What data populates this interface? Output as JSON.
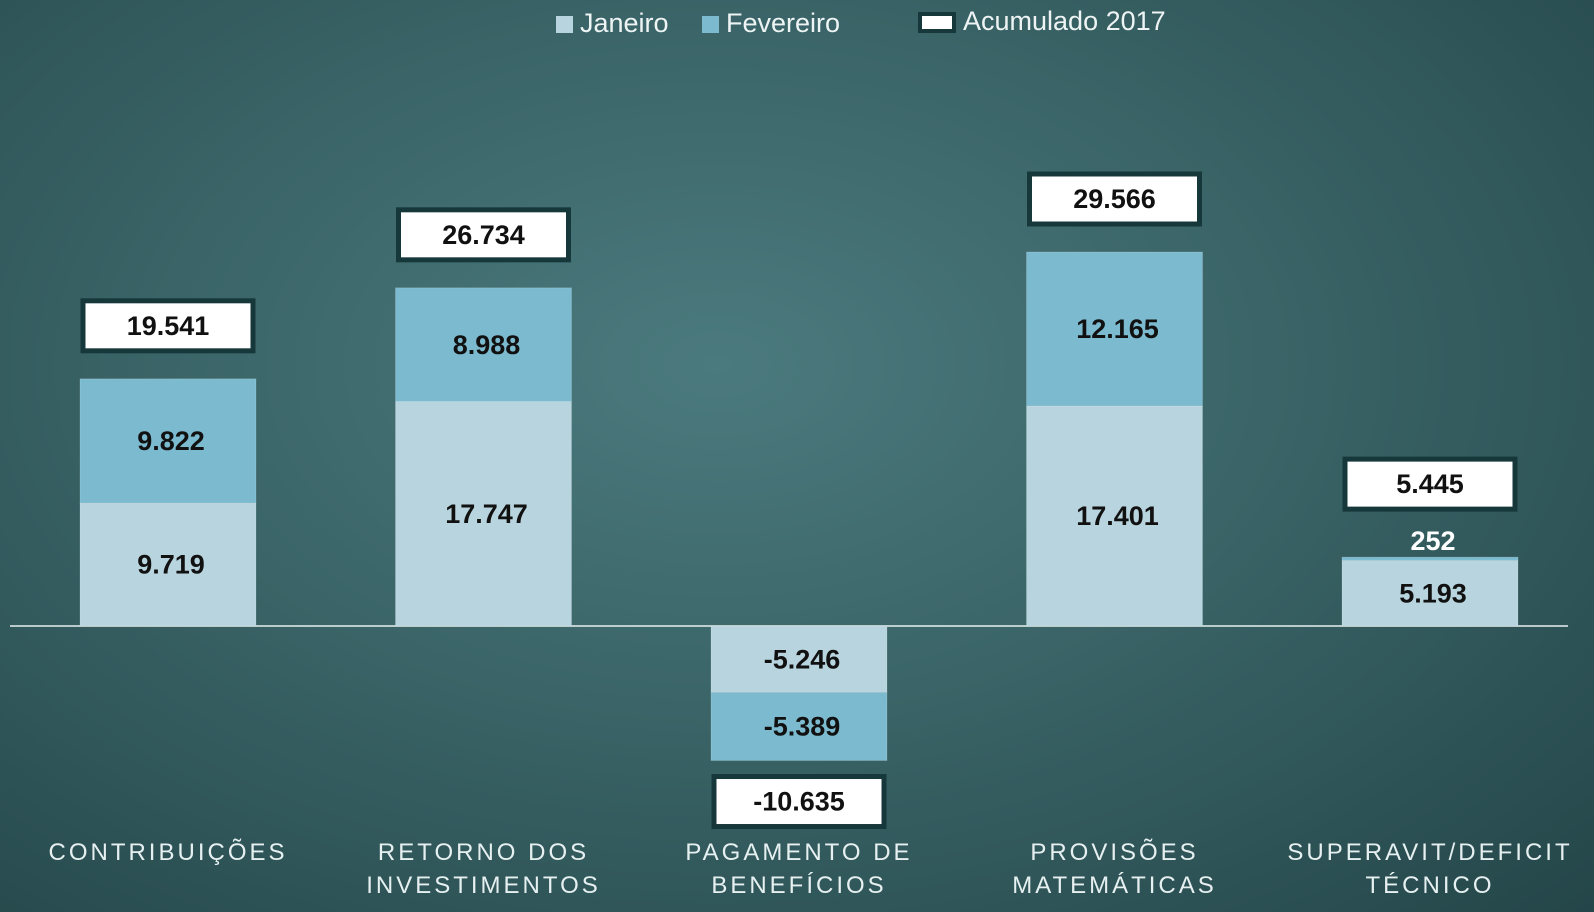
{
  "chart_data": {
    "type": "stacked-bar",
    "categories": [
      "CONTRIBUIÇÕES",
      "RETORNO DOS INVESTIMENTOS",
      "PAGAMENTO DE BENEFÍCIOS",
      "PROVISÕES MATEMÁTICAS",
      "SUPERAVIT/DEFICIT TÉCNICO"
    ],
    "series": [
      {
        "name": "Janeiro",
        "color": "#b8d4de",
        "values": [
          9719,
          17747,
          -5246,
          17401,
          5193
        ],
        "value_labels": [
          "9.719",
          "17.747",
          "-5.246",
          "17.401",
          "5.193"
        ]
      },
      {
        "name": "Fevereiro",
        "color": "#7bbacf",
        "values": [
          9822,
          8988,
          -5389,
          12165,
          252
        ],
        "value_labels": [
          "9.822",
          "8.988",
          "-5.389",
          "12.165",
          "252"
        ]
      }
    ],
    "totals": {
      "name": "Acumulado 2017",
      "color": "#ffffff",
      "values": [
        19541,
        26734,
        -10635,
        29566,
        5445
      ],
      "value_labels": [
        "19.541",
        "26.734",
        "-10.635",
        "29.566",
        "5.445"
      ]
    },
    "legend": "top"
  }
}
